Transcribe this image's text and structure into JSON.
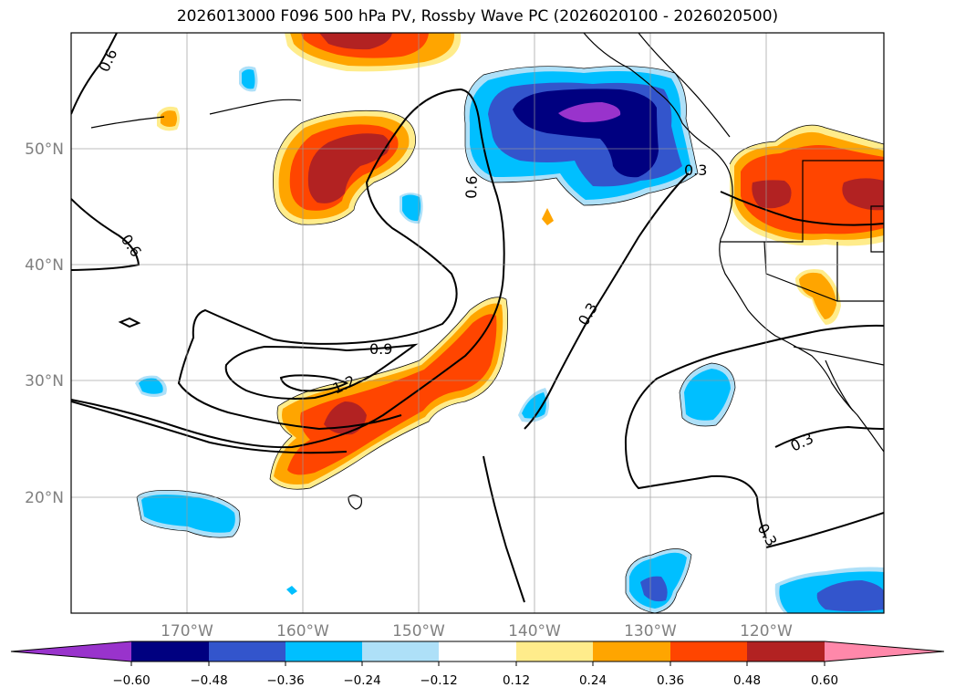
{
  "title": "2026013000 F096 500 hPa PV, Rossby Wave PC (2026020100 - 2026020500)",
  "axes": {
    "lat_labels": [
      "50°N",
      "40°N",
      "30°N",
      "20°N"
    ],
    "lon_labels": [
      "170°W",
      "160°W",
      "150°W",
      "140°W",
      "130°W",
      "120°W"
    ]
  },
  "contour_labels": [
    "0.6",
    "0.6",
    "0.6",
    "0.9",
    "1.2",
    "0.3",
    "0.3",
    "0.3",
    "0.3"
  ],
  "colorbar": {
    "ticks": [
      "−0.60",
      "−0.48",
      "−0.36",
      "−0.24",
      "−0.12",
      "0.12",
      "0.24",
      "0.36",
      "0.48",
      "0.60"
    ],
    "colors": {
      "under": "#9933cc",
      "c1": "#000080",
      "c2": "#3355cc",
      "c3": "#00bfff",
      "c4": "#aee0f8",
      "c5": "#ffffff",
      "c6": "#ffec8b",
      "c7": "#ffa500",
      "c8": "#ff4500",
      "c9": "#b22222",
      "over": "#ff88aa"
    }
  }
}
